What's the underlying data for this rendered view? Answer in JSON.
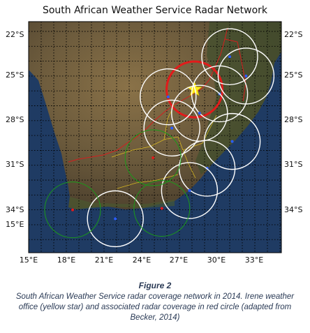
{
  "map": {
    "title": "South African Weather Service Radar Network",
    "lat_labels_left": [
      "22°S",
      "25°S",
      "28°S",
      "31°S",
      "34°S"
    ],
    "lat_labels_right": [
      "22°S",
      "25°S",
      "28°S",
      "31°S",
      "34°S"
    ],
    "extra_lon_label": "15°E",
    "lon_labels": [
      "15°E",
      "18°E",
      "21°E",
      "24°E",
      "27°E",
      "30°E",
      "33°E"
    ],
    "colors": {
      "ocean": "#1f3b63",
      "land": "#6b5a3c",
      "green_land": "#3e4f2c",
      "radar_white": "#ffffff",
      "radar_green": "#1a9a1a",
      "irene_circle": "#e21b1b",
      "irene_star": "#ffeb1a",
      "border": "#d21f1f",
      "province": "#e2c21f"
    },
    "irene_office": "Irene weather office",
    "radars": [
      {
        "lon": 28.2,
        "lat": -25.9,
        "type": "irene"
      },
      {
        "lon": 31.0,
        "lat": -23.7,
        "type": "white"
      },
      {
        "lon": 32.3,
        "lat": -25.0,
        "type": "white"
      },
      {
        "lon": 26.1,
        "lat": -26.4,
        "type": "white"
      },
      {
        "lon": 30.2,
        "lat": -26.2,
        "type": "white"
      },
      {
        "lon": 26.4,
        "lat": -28.5,
        "type": "white"
      },
      {
        "lon": 28.6,
        "lat": -27.5,
        "type": "white"
      },
      {
        "lon": 31.2,
        "lat": -29.4,
        "type": "white"
      },
      {
        "lon": 29.2,
        "lat": -31.2,
        "type": "white"
      },
      {
        "lon": 27.8,
        "lat": -32.7,
        "type": "white"
      },
      {
        "lon": 21.9,
        "lat": -34.6,
        "type": "white"
      },
      {
        "lon": 24.9,
        "lat": -30.5,
        "type": "green"
      },
      {
        "lon": 18.5,
        "lat": -34.0,
        "type": "green"
      },
      {
        "lon": 25.6,
        "lat": -33.9,
        "type": "green"
      }
    ]
  },
  "figure_label": "Figure 2",
  "caption": "South African Weather Service radar coverage network in 2014. Irene weather office (yellow star) and associated radar coverage in red circle (adapted from Becker, 2014)"
}
